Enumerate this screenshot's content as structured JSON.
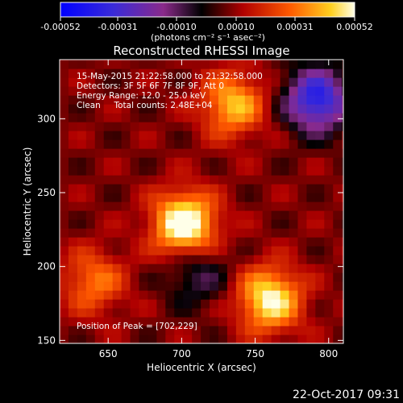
{
  "colorbar": {
    "tick_labels": [
      "-0.00052",
      "-0.00031",
      "-0.00010",
      "0.00010",
      "0.00031",
      "0.00052"
    ],
    "units": "(photons cm⁻² s⁻¹ asec⁻²)"
  },
  "chart_data": {
    "type": "heatmap",
    "title": "Reconstructed RHESSI Image",
    "xlabel": "Heliocentric X (arcsec)",
    "ylabel": "Heliocentric Y (arcsec)",
    "xlim": [
      617,
      810
    ],
    "ylim": [
      148,
      340
    ],
    "x_ticks": [
      "650",
      "700",
      "750",
      "800"
    ],
    "y_ticks": [
      "150",
      "200",
      "250",
      "300"
    ],
    "colorbar_range": [
      -0.00052,
      0.00052
    ],
    "annotations": [
      "15-May-2015 21:22:58.000 to 21:32:58.000",
      "Detectors: 3F 5F 6F 7F 8F 9F, Att 0",
      "Energy Range: 12.0 - 25.0 keV",
      "Clean     Total counts: 2.48E+04"
    ],
    "peak_label": "Position of Peak = [702,229]",
    "peak": [
      702,
      229
    ],
    "sources": [
      {
        "x": 702,
        "y": 229,
        "value": 0.00052
      },
      {
        "x": 760,
        "y": 178,
        "value": 0.00044
      },
      {
        "x": 735,
        "y": 310,
        "value": 0.00034
      },
      {
        "x": 640,
        "y": 190,
        "value": 0.00024
      },
      {
        "x": 792,
        "y": 313,
        "value": -0.00048
      },
      {
        "x": 710,
        "y": 195,
        "value": -0.00018
      }
    ]
  },
  "footer": {
    "timestamp": "22-Oct-2017 09:31"
  }
}
